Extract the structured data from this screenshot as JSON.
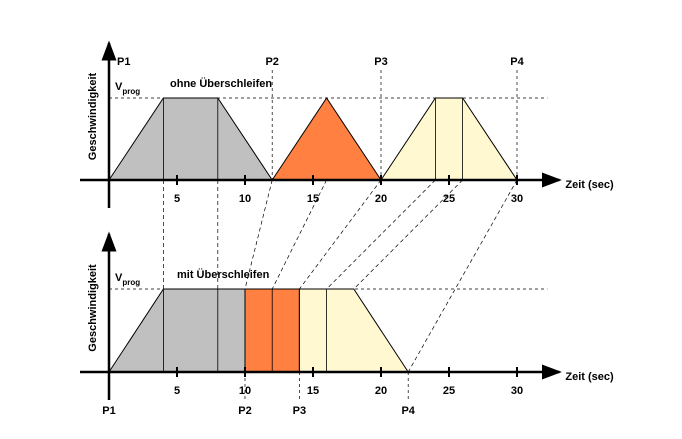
{
  "chart_data": [
    {
      "type": "area",
      "subtitle": "ohne Überschleifen",
      "ylabel": "Geschwindigkeit",
      "xlabel": "Zeit (sec)",
      "level_label": "V",
      "level_label_sub": "prog",
      "level": 1,
      "ylim": [
        0,
        1.1
      ],
      "xlim": [
        0,
        31.5
      ],
      "xticks": [
        5,
        10,
        15,
        20,
        25,
        30
      ],
      "marker_side": "top",
      "segments": [
        {
          "color": "#c0c0c0",
          "x": [
            0,
            4,
            8,
            12
          ],
          "y": [
            0,
            1,
            1,
            0
          ]
        },
        {
          "color": "#ff8040",
          "x": [
            12,
            16,
            20
          ],
          "y": [
            0,
            1,
            0
          ]
        },
        {
          "color": "#fff8d0",
          "x": [
            20,
            24,
            26,
            30
          ],
          "y": [
            0,
            1,
            1,
            0
          ]
        }
      ],
      "dividers": [
        4,
        8,
        24,
        26
      ],
      "markers": [
        {
          "label": "P1",
          "x": 0
        },
        {
          "label": "P2",
          "x": 12
        },
        {
          "label": "P3",
          "x": 20
        },
        {
          "label": "P4",
          "x": 30
        }
      ]
    },
    {
      "type": "area",
      "subtitle": "mit Überschleifen",
      "ylabel": "Geschwindigkeit",
      "xlabel": "Zeit (sec)",
      "level_label": "V",
      "level_label_sub": "prog",
      "level": 1,
      "ylim": [
        0,
        1.1
      ],
      "xlim": [
        0,
        31.5
      ],
      "xticks": [
        5,
        10,
        15,
        20,
        25,
        30
      ],
      "marker_side": "bottom",
      "segments": [
        {
          "color": "#c0c0c0",
          "x": [
            0,
            4,
            10,
            10
          ],
          "y": [
            0,
            1,
            1,
            0
          ]
        },
        {
          "color": "#ff8040",
          "x": [
            10,
            10,
            14,
            14
          ],
          "y": [
            0,
            1,
            1,
            0
          ]
        },
        {
          "color": "#fff8d0",
          "x": [
            14,
            14,
            18,
            22
          ],
          "y": [
            0,
            1,
            1,
            0
          ]
        }
      ],
      "dividers": [
        4,
        8,
        12,
        16
      ],
      "markers": [
        {
          "label": "P1",
          "x": 0
        },
        {
          "label": "P2",
          "x": 10
        },
        {
          "label": "P3",
          "x": 14
        },
        {
          "label": "P4",
          "x": 22
        }
      ]
    }
  ],
  "connections": [
    [
      4,
      4
    ],
    [
      8,
      8
    ],
    [
      12,
      10
    ],
    [
      16,
      12
    ],
    [
      20,
      14
    ],
    [
      24,
      16
    ],
    [
      26,
      18
    ],
    [
      30,
      22
    ]
  ]
}
